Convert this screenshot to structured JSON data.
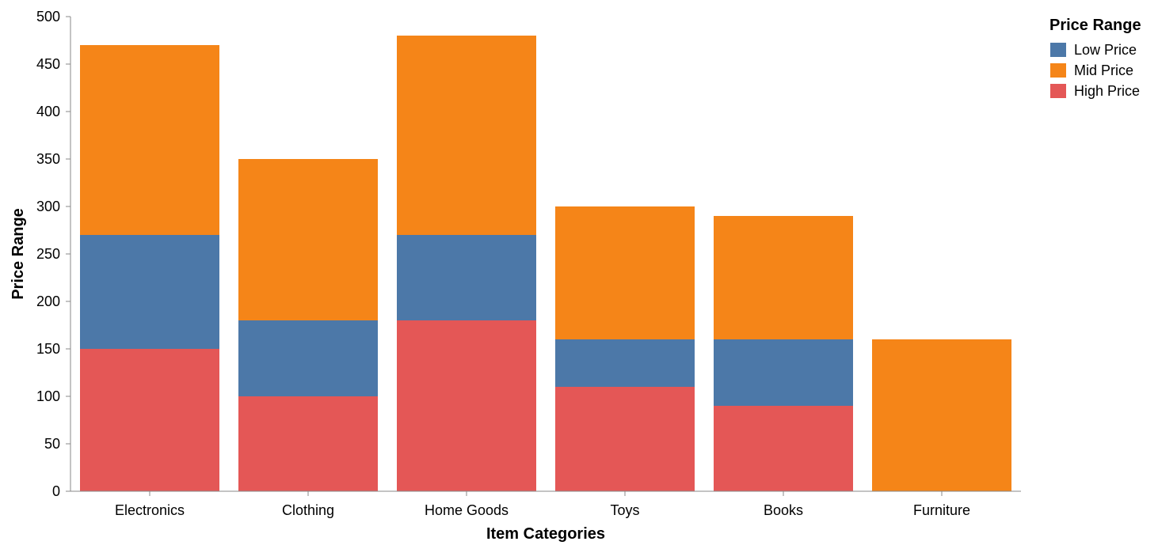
{
  "chart_data": {
    "type": "bar",
    "stacked": true,
    "categories": [
      "Electronics",
      "Clothing",
      "Home Goods",
      "Toys",
      "Books",
      "Furniture"
    ],
    "series": [
      {
        "name": "High Price",
        "color": "#e45756",
        "values": [
          150,
          100,
          180,
          110,
          90,
          0
        ]
      },
      {
        "name": "Low Price",
        "color": "#4c78a8",
        "values": [
          120,
          80,
          90,
          50,
          70,
          0
        ]
      },
      {
        "name": "Mid Price",
        "color": "#f58518",
        "values": [
          200,
          170,
          210,
          140,
          130,
          160
        ]
      }
    ],
    "xlabel": "Item Categories",
    "ylabel": "Price Range",
    "ylim": [
      0,
      500
    ],
    "yticks": [
      0,
      50,
      100,
      150,
      200,
      250,
      300,
      350,
      400,
      450,
      500
    ],
    "grid": false,
    "legend": {
      "title": "Price Range",
      "position": "top-right",
      "entries": [
        {
          "label": "Low Price",
          "color": "#4c78a8"
        },
        {
          "label": "Mid Price",
          "color": "#f58518"
        },
        {
          "label": "High Price",
          "color": "#e45756"
        }
      ]
    }
  }
}
